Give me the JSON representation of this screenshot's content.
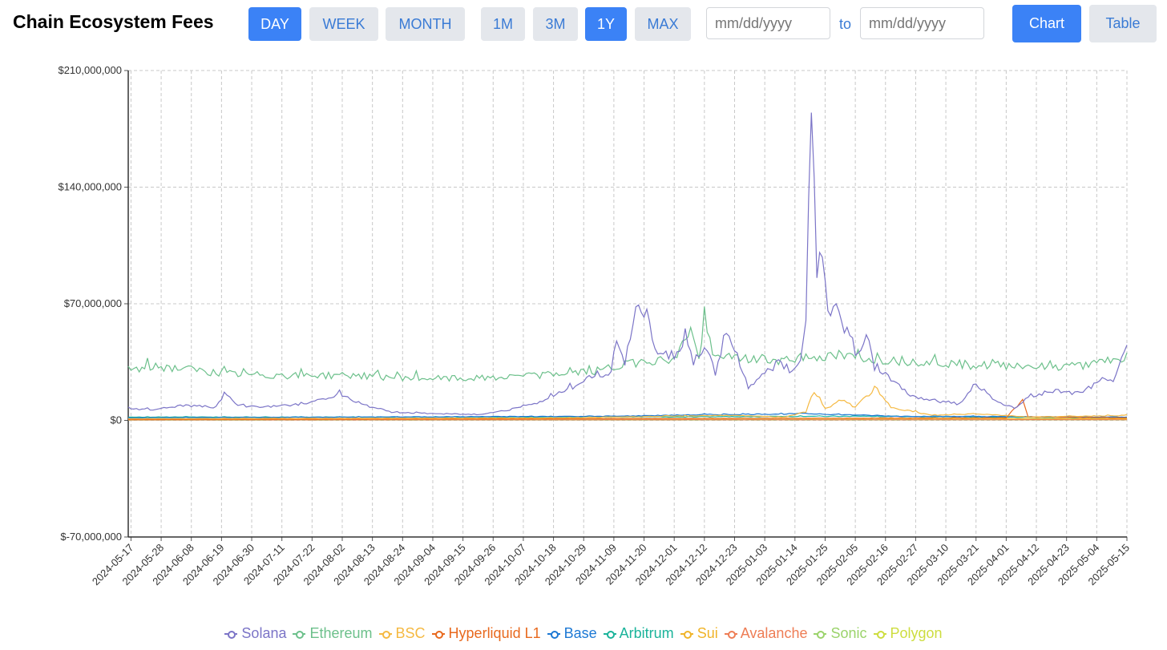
{
  "header": {
    "title": "Chain Ecosystem Fees",
    "period_buttons": [
      {
        "label": "DAY",
        "active": true
      },
      {
        "label": "WEEK",
        "active": false
      },
      {
        "label": "MONTH",
        "active": false
      }
    ],
    "range_buttons": [
      {
        "label": "1M",
        "active": false
      },
      {
        "label": "3M",
        "active": false
      },
      {
        "label": "1Y",
        "active": true
      },
      {
        "label": "MAX",
        "active": false
      }
    ],
    "date_from_placeholder": "mm/dd/yyyy",
    "date_to_placeholder": "mm/dd/yyyy",
    "to_label": "to",
    "view_buttons": [
      {
        "label": "Chart",
        "active": true
      },
      {
        "label": "Table",
        "active": false
      }
    ],
    "accent_color": "#3b82f6",
    "inactive_button_color": "#e4e7ec"
  },
  "chart_data": {
    "type": "line",
    "title": "",
    "xlabel": "",
    "ylabel": "",
    "ylim": [
      -70000000,
      210000000
    ],
    "y_ticks": [
      -70000000,
      0,
      70000000,
      140000000,
      210000000
    ],
    "y_tick_labels": [
      "$-70,000,000",
      "$0",
      "$70,000,000",
      "$140,000,000",
      "$210,000,000"
    ],
    "x_start": "2024-05-16",
    "x_end": "2025-05-15",
    "x_tick_labels": [
      "2024-05-17",
      "2024-05-28",
      "2024-06-08",
      "2024-06-19",
      "2024-06-30",
      "2024-07-11",
      "2024-07-22",
      "2024-08-02",
      "2024-08-13",
      "2024-08-24",
      "2024-09-04",
      "2024-09-15",
      "2024-09-26",
      "2024-10-07",
      "2024-10-18",
      "2024-10-29",
      "2024-11-09",
      "2024-11-20",
      "2024-12-01",
      "2024-12-12",
      "2024-12-23",
      "2025-01-03",
      "2025-01-14",
      "2025-01-25",
      "2025-02-05",
      "2025-02-16",
      "2025-02-27",
      "2025-03-10",
      "2025-03-21",
      "2025-04-01",
      "2025-04-12",
      "2025-04-23",
      "2025-05-04",
      "2025-05-15"
    ],
    "grid": true,
    "legend_position": "bottom-center",
    "series": [
      {
        "name": "Solana",
        "color": "#7b74c7",
        "points": [
          [
            "2024-05-16",
            7000000
          ],
          [
            "2024-05-25",
            6500000
          ],
          [
            "2024-06-05",
            9000000
          ],
          [
            "2024-06-17",
            8000000
          ],
          [
            "2024-06-20",
            16000000
          ],
          [
            "2024-06-25",
            9000000
          ],
          [
            "2024-07-05",
            8000000
          ],
          [
            "2024-07-20",
            10000000
          ],
          [
            "2024-08-01",
            16000000
          ],
          [
            "2024-08-08",
            10000000
          ],
          [
            "2024-08-20",
            5000000
          ],
          [
            "2024-09-05",
            4000000
          ],
          [
            "2024-09-20",
            3500000
          ],
          [
            "2024-10-01",
            6000000
          ],
          [
            "2024-10-10",
            10000000
          ],
          [
            "2024-10-15",
            12000000
          ],
          [
            "2024-10-20",
            17000000
          ],
          [
            "2024-10-28",
            22000000
          ],
          [
            "2024-11-03",
            28000000
          ],
          [
            "2024-11-07",
            25000000
          ],
          [
            "2024-11-10",
            45000000
          ],
          [
            "2024-11-13",
            35000000
          ],
          [
            "2024-11-17",
            65000000
          ],
          [
            "2024-11-21",
            67000000
          ],
          [
            "2024-11-23",
            48000000
          ],
          [
            "2024-11-27",
            37000000
          ],
          [
            "2024-12-01",
            40000000
          ],
          [
            "2024-12-05",
            48000000
          ],
          [
            "2024-12-08",
            34000000
          ],
          [
            "2024-12-12",
            45000000
          ],
          [
            "2024-12-16",
            28000000
          ],
          [
            "2024-12-20",
            55000000
          ],
          [
            "2024-12-24",
            38000000
          ],
          [
            "2024-12-28",
            20000000
          ],
          [
            "2025-01-03",
            28000000
          ],
          [
            "2025-01-08",
            35000000
          ],
          [
            "2025-01-12",
            30000000
          ],
          [
            "2025-01-16",
            35000000
          ],
          [
            "2025-01-18",
            60000000
          ],
          [
            "2025-01-20",
            200000000
          ],
          [
            "2025-01-22",
            85000000
          ],
          [
            "2025-01-23",
            105000000
          ],
          [
            "2025-01-27",
            60000000
          ],
          [
            "2025-01-29",
            75000000
          ],
          [
            "2025-02-01",
            50000000
          ],
          [
            "2025-02-03",
            55000000
          ],
          [
            "2025-02-06",
            35000000
          ],
          [
            "2025-02-09",
            55000000
          ],
          [
            "2025-02-12",
            30000000
          ],
          [
            "2025-02-18",
            25000000
          ],
          [
            "2025-02-25",
            15000000
          ],
          [
            "2025-03-05",
            12000000
          ],
          [
            "2025-03-15",
            10000000
          ],
          [
            "2025-03-21",
            22000000
          ],
          [
            "2025-03-28",
            12000000
          ],
          [
            "2025-04-04",
            7000000
          ],
          [
            "2025-04-10",
            15000000
          ],
          [
            "2025-04-20",
            18000000
          ],
          [
            "2025-04-28",
            16000000
          ],
          [
            "2025-05-06",
            25000000
          ],
          [
            "2025-05-10",
            22000000
          ],
          [
            "2025-05-15",
            46000000
          ]
        ]
      },
      {
        "name": "Ethereum",
        "color": "#6cc08b",
        "points": [
          [
            "2024-05-16",
            30000000
          ],
          [
            "2024-05-25",
            32000000
          ],
          [
            "2024-06-05",
            31000000
          ],
          [
            "2024-06-20",
            28000000
          ],
          [
            "2024-07-05",
            27000000
          ],
          [
            "2024-07-20",
            27000000
          ],
          [
            "2024-08-05",
            27000000
          ],
          [
            "2024-08-20",
            26000000
          ],
          [
            "2024-09-05",
            25000000
          ],
          [
            "2024-09-20",
            25000000
          ],
          [
            "2024-10-05",
            26000000
          ],
          [
            "2024-10-20",
            28000000
          ],
          [
            "2024-11-05",
            30000000
          ],
          [
            "2024-11-20",
            36000000
          ],
          [
            "2024-12-01",
            36000000
          ],
          [
            "2024-12-07",
            55000000
          ],
          [
            "2024-12-10",
            36000000
          ],
          [
            "2024-12-12",
            62000000
          ],
          [
            "2024-12-15",
            38000000
          ],
          [
            "2024-12-25",
            37000000
          ],
          [
            "2025-01-05",
            36000000
          ],
          [
            "2025-01-20",
            38000000
          ],
          [
            "2025-02-05",
            38000000
          ],
          [
            "2025-02-20",
            36000000
          ],
          [
            "2025-03-05",
            35000000
          ],
          [
            "2025-03-20",
            33000000
          ],
          [
            "2025-04-05",
            33000000
          ],
          [
            "2025-04-15",
            32000000
          ],
          [
            "2025-04-30",
            33000000
          ],
          [
            "2025-05-15",
            37000000
          ]
        ]
      },
      {
        "name": "BSC",
        "color": "#f5b942",
        "points": [
          [
            "2024-05-16",
            1000000
          ],
          [
            "2024-10-20",
            1500000
          ],
          [
            "2024-12-20",
            3000000
          ],
          [
            "2025-01-10",
            2000000
          ],
          [
            "2025-01-18",
            5000000
          ],
          [
            "2025-01-21",
            18000000
          ],
          [
            "2025-01-25",
            7000000
          ],
          [
            "2025-01-31",
            12000000
          ],
          [
            "2025-02-05",
            8000000
          ],
          [
            "2025-02-12",
            19000000
          ],
          [
            "2025-02-18",
            8000000
          ],
          [
            "2025-03-05",
            3000000
          ],
          [
            "2025-03-21",
            4000000
          ],
          [
            "2025-04-10",
            2000000
          ],
          [
            "2025-05-15",
            3000000
          ]
        ]
      },
      {
        "name": "Hyperliquid L1",
        "color": "#e8691e",
        "points": [
          [
            "2024-05-16",
            500000
          ],
          [
            "2025-04-01",
            1500000
          ],
          [
            "2025-04-07",
            12000000
          ],
          [
            "2025-04-09",
            2000000
          ],
          [
            "2025-05-15",
            1500000
          ]
        ]
      },
      {
        "name": "Base",
        "color": "#1c78d4",
        "points": [
          [
            "2024-05-16",
            1500000
          ],
          [
            "2024-11-10",
            2500000
          ],
          [
            "2024-12-15",
            3500000
          ],
          [
            "2025-01-20",
            4000000
          ],
          [
            "2025-02-20",
            2500000
          ],
          [
            "2025-05-15",
            2000000
          ]
        ]
      },
      {
        "name": "Arbitrum",
        "color": "#1ab39a",
        "points": [
          [
            "2024-05-16",
            2000000
          ],
          [
            "2024-11-15",
            2000000
          ],
          [
            "2025-02-01",
            2500000
          ],
          [
            "2025-05-15",
            1500000
          ]
        ]
      },
      {
        "name": "Sui",
        "color": "#f0b429",
        "points": [
          [
            "2024-05-16",
            500000
          ],
          [
            "2025-01-15",
            1200000
          ],
          [
            "2025-05-15",
            1000000
          ]
        ]
      },
      {
        "name": "Avalanche",
        "color": "#ee7d55",
        "points": [
          [
            "2024-05-16",
            300000
          ],
          [
            "2025-05-15",
            400000
          ]
        ]
      },
      {
        "name": "Sonic",
        "color": "#9bd36b",
        "points": [
          [
            "2024-05-16",
            200000
          ],
          [
            "2025-05-15",
            300000
          ]
        ]
      },
      {
        "name": "Polygon",
        "color": "#cddd3f",
        "points": [
          [
            "2024-05-16",
            600000
          ],
          [
            "2025-05-15",
            500000
          ]
        ]
      }
    ]
  }
}
